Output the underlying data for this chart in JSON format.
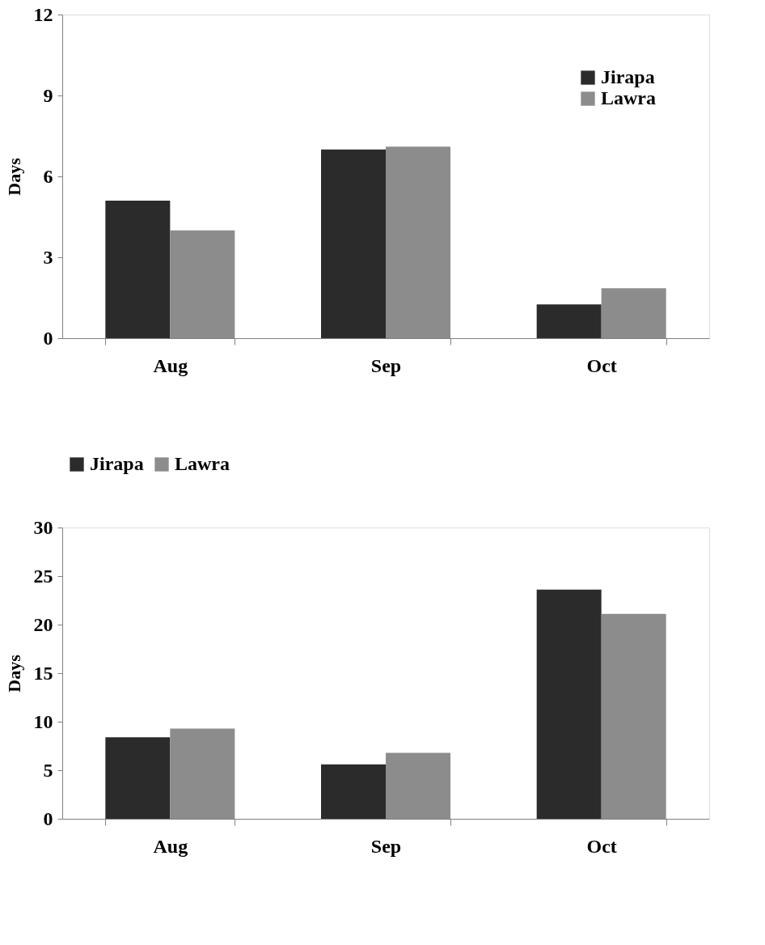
{
  "chart_data": [
    {
      "type": "bar",
      "ylabel": "Days",
      "categories": [
        "Aug",
        "Sep",
        "Oct"
      ],
      "series": [
        {
          "name": "Jirapa",
          "color": "#2b2b2b",
          "values": [
            5.1,
            7.0,
            1.25
          ]
        },
        {
          "name": "Lawra",
          "color": "#8c8c8c",
          "values": [
            4.0,
            7.1,
            1.85
          ]
        }
      ],
      "ylim": [
        0,
        12
      ],
      "yticks": [
        0,
        3,
        6,
        9,
        12
      ],
      "grid": false,
      "legend": "top right"
    },
    {
      "type": "bar",
      "ylabel": "Days",
      "categories": [
        "Aug",
        "Sep",
        "Oct"
      ],
      "series": [
        {
          "name": "Jirapa",
          "color": "#2b2b2b",
          "values": [
            8.4,
            5.6,
            23.6
          ]
        },
        {
          "name": "Lawra",
          "color": "#8c8c8c",
          "values": [
            9.3,
            6.8,
            21.1
          ]
        }
      ],
      "ylim": [
        0,
        30
      ],
      "yticks": [
        0,
        5,
        10,
        15,
        20,
        25,
        30
      ],
      "grid": false,
      "legend": "top"
    }
  ]
}
